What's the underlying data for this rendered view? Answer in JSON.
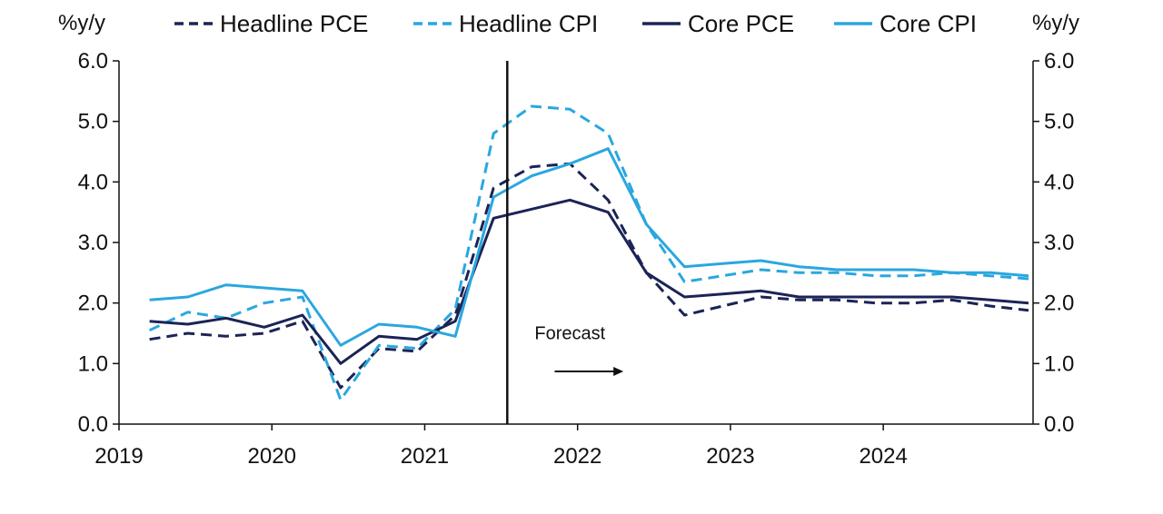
{
  "chart_data": {
    "type": "line",
    "title": "",
    "left_unit_label": "%y/y",
    "right_unit_label": "%y/y",
    "xlabel": "",
    "ylabel": "%y/y",
    "ylim": [
      0,
      6
    ],
    "xlim": [
      2019,
      2024.98
    ],
    "y_ticks": [
      0,
      1,
      2,
      3,
      4,
      5,
      6
    ],
    "y_tick_labels": [
      "0.0",
      "1.0",
      "2.0",
      "3.0",
      "4.0",
      "5.0",
      "6.0"
    ],
    "x_ticks": [
      2019,
      2020,
      2021,
      2022,
      2023,
      2024
    ],
    "x_tick_labels": [
      "2019",
      "2020",
      "2021",
      "2022",
      "2023",
      "2024"
    ],
    "forecast_start": 2021.54,
    "annotation": {
      "text": "Forecast",
      "x": 2021.95,
      "y": 1.4
    },
    "arrow": {
      "x_start": 2021.85,
      "x_end": 2022.3,
      "y": 0.87
    },
    "x": [
      2019.2,
      2019.45,
      2019.7,
      2019.95,
      2020.2,
      2020.45,
      2020.7,
      2020.95,
      2021.2,
      2021.45,
      2021.7,
      2021.95,
      2022.2,
      2022.45,
      2022.7,
      2022.95,
      2023.2,
      2023.45,
      2023.7,
      2023.95,
      2024.2,
      2024.45,
      2024.7,
      2024.95
    ],
    "series": [
      {
        "name": "Headline PCE",
        "color": "#1b2456",
        "dash": "dash",
        "values": [
          1.4,
          1.5,
          1.45,
          1.5,
          1.7,
          0.6,
          1.25,
          1.2,
          1.8,
          3.9,
          4.25,
          4.3,
          3.7,
          2.5,
          1.8,
          1.95,
          2.1,
          2.05,
          2.05,
          2.0,
          2.0,
          2.05,
          1.95,
          1.88
        ]
      },
      {
        "name": "Headline CPI",
        "color": "#2aa7df",
        "dash": "dash",
        "values": [
          1.55,
          1.85,
          1.75,
          2.0,
          2.1,
          0.4,
          1.3,
          1.25,
          1.9,
          4.8,
          5.25,
          5.2,
          4.8,
          3.3,
          2.35,
          2.45,
          2.55,
          2.5,
          2.5,
          2.45,
          2.45,
          2.5,
          2.45,
          2.4
        ]
      },
      {
        "name": "Core PCE",
        "color": "#1b2456",
        "dash": "solid",
        "values": [
          1.7,
          1.65,
          1.75,
          1.6,
          1.8,
          1.0,
          1.45,
          1.4,
          1.7,
          3.4,
          3.55,
          3.7,
          3.5,
          2.5,
          2.1,
          2.15,
          2.2,
          2.1,
          2.1,
          2.1,
          2.1,
          2.1,
          2.05,
          2.0
        ]
      },
      {
        "name": "Core CPI",
        "color": "#2aa7df",
        "dash": "solid",
        "values": [
          2.05,
          2.1,
          2.3,
          2.25,
          2.2,
          1.3,
          1.65,
          1.6,
          1.45,
          3.75,
          4.1,
          4.3,
          4.55,
          3.3,
          2.6,
          2.65,
          2.7,
          2.6,
          2.55,
          2.55,
          2.55,
          2.5,
          2.5,
          2.45
        ]
      }
    ],
    "legend": [
      "Headline PCE",
      "Headline CPI",
      "Core PCE",
      "Core CPI"
    ],
    "legend_position": "top",
    "grid": false
  }
}
